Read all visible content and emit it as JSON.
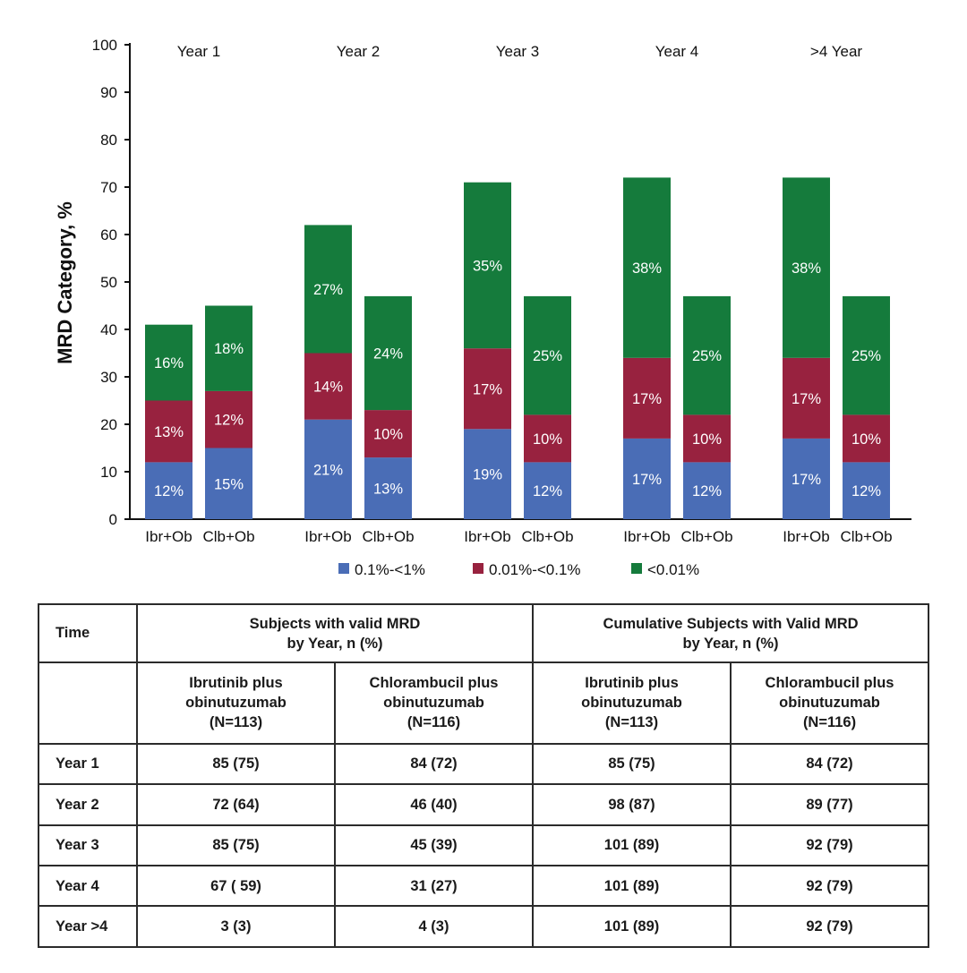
{
  "chart_data": {
    "type": "bar",
    "stacked": true,
    "ylabel": "MRD Category, %",
    "ylim": [
      0,
      100
    ],
    "yticks": [
      0,
      10,
      20,
      30,
      40,
      50,
      60,
      70,
      80,
      90,
      100
    ],
    "groups": [
      "Year 1",
      "Year 2",
      "Year 3",
      "Year 4",
      ">4 Year"
    ],
    "categories": [
      "Ibr+Ob",
      "Clb+Ob"
    ],
    "series": [
      {
        "name": "0.1%-<1%",
        "color": "#4a6db6",
        "values": [
          [
            12,
            15
          ],
          [
            21,
            13
          ],
          [
            19,
            12
          ],
          [
            17,
            12
          ],
          [
            17,
            12
          ]
        ]
      },
      {
        "name": "0.01%-<0.1%",
        "color": "#98223f",
        "values": [
          [
            13,
            12
          ],
          [
            14,
            10
          ],
          [
            17,
            10
          ],
          [
            17,
            10
          ],
          [
            17,
            10
          ]
        ]
      },
      {
        "name": "<0.01%",
        "color": "#157b3c",
        "values": [
          [
            16,
            18
          ],
          [
            27,
            24
          ],
          [
            35,
            25
          ],
          [
            38,
            25
          ],
          [
            38,
            25
          ]
        ]
      }
    ],
    "labels": [
      [
        [
          "12%",
          "13%",
          "16%"
        ],
        [
          "15%",
          "12%",
          "18%"
        ]
      ],
      [
        [
          "21%",
          "14%",
          "27%"
        ],
        [
          "13%",
          "10%",
          "24%"
        ]
      ],
      [
        [
          "19%",
          "17%",
          "35%"
        ],
        [
          "12%",
          "10%",
          "25%"
        ]
      ],
      [
        [
          "17%",
          "17%",
          "38%"
        ],
        [
          "12%",
          "10%",
          "25%"
        ]
      ],
      [
        [
          "17%",
          "17%",
          "38%"
        ],
        [
          "12%",
          "10%",
          "25%"
        ]
      ]
    ],
    "legend_position": "bottom"
  },
  "table": {
    "time_header": "Time",
    "group1_header_line1": "Subjects with valid MRD",
    "group1_header_line2": "by Year, n (%)",
    "group2_header_line1": "Cumulative Subjects with Valid MRD",
    "group2_header_line2": "by Year, n (%)",
    "col_ibr_line1": "Ibrutinib plus",
    "col_ibr_line2": "obinutuzumab",
    "col_ibr_n": "(N=113)",
    "col_clb_line1": "Chlorambucil plus",
    "col_clb_line2": "obinutuzumab",
    "col_clb_n": "(N=116)",
    "rows": [
      {
        "time": "Year 1",
        "v": [
          "85 (75)",
          "84 (72)",
          "85 (75)",
          "84 (72)"
        ]
      },
      {
        "time": "Year 2",
        "v": [
          "72 (64)",
          "46 (40)",
          "98 (87)",
          "89 (77)"
        ]
      },
      {
        "time": "Year 3",
        "v": [
          "85 (75)",
          "45 (39)",
          "101 (89)",
          "92 (79)"
        ]
      },
      {
        "time": "Year 4",
        "v": [
          "67 ( 59)",
          "31 (27)",
          "101 (89)",
          "92 (79)"
        ]
      },
      {
        "time": "Year >4",
        "v": [
          "3 (3)",
          "4 (3)",
          "101 (89)",
          "92 (79)"
        ]
      }
    ]
  }
}
